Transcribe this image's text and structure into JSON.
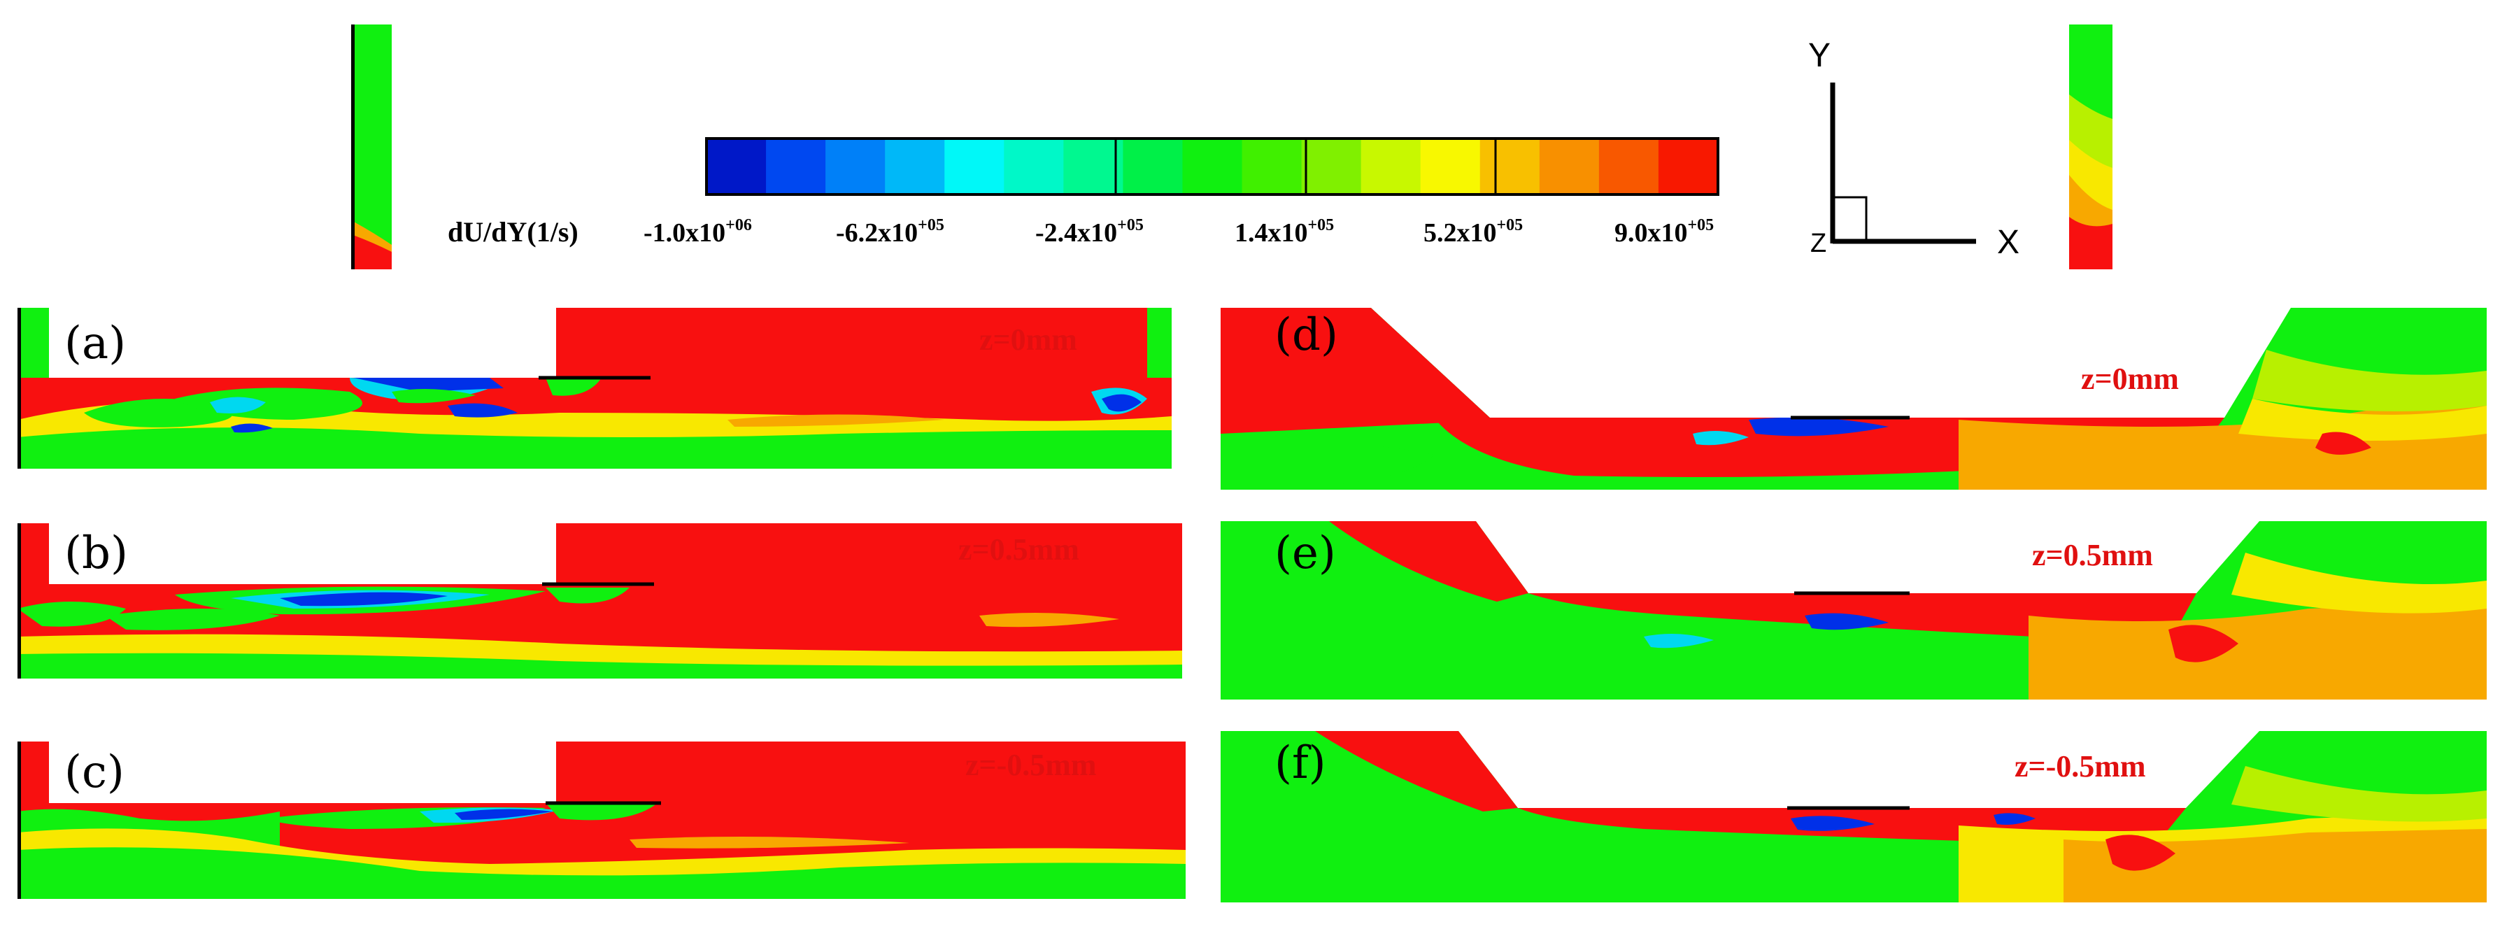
{
  "colorbar": {
    "title": "dU/dY(1/s)",
    "tick_labels": [
      {
        "mantissa": "-1.0x10",
        "exponent": "+06"
      },
      {
        "mantissa": "-6.2x10",
        "exponent": "+05"
      },
      {
        "mantissa": "-2.4x10",
        "exponent": "+05"
      },
      {
        "mantissa": "1.4x10",
        "exponent": "+05"
      },
      {
        "mantissa": "5.2x10",
        "exponent": "+05"
      },
      {
        "mantissa": "9.0x10",
        "exponent": "+05"
      }
    ],
    "colors": [
      "#0018c8",
      "#0048f0",
      "#0080f8",
      "#00b8f8",
      "#00f8f8",
      "#00f8c8",
      "#00f890",
      "#00f048",
      "#10f010",
      "#40f000",
      "#80f000",
      "#c8f800",
      "#f8f800",
      "#f8c000",
      "#f89000",
      "#f85800",
      "#f81800"
    ]
  },
  "axes_icon": {
    "y_label": "Y",
    "x_label": "X",
    "z_label": "Z"
  },
  "panels": [
    {
      "label": "(a)",
      "z": "z=0mm"
    },
    {
      "label": "(b)",
      "z": "z=0.5mm"
    },
    {
      "label": "(c)",
      "z": "z=-0.5mm"
    },
    {
      "label": "(d)",
      "z": "z=0mm"
    },
    {
      "label": "(e)",
      "z": "z=0.5mm"
    },
    {
      "label": "(f)",
      "z": "z=-0.5mm"
    }
  ],
  "palette": {
    "red": "#f81010",
    "orange": "#f8a800",
    "yellow": "#f8e800",
    "yellowgreen": "#b8f000",
    "green": "#10f010",
    "cyan": "#00d8f0",
    "blue": "#0030e8",
    "darkblue": "#0010a0"
  }
}
